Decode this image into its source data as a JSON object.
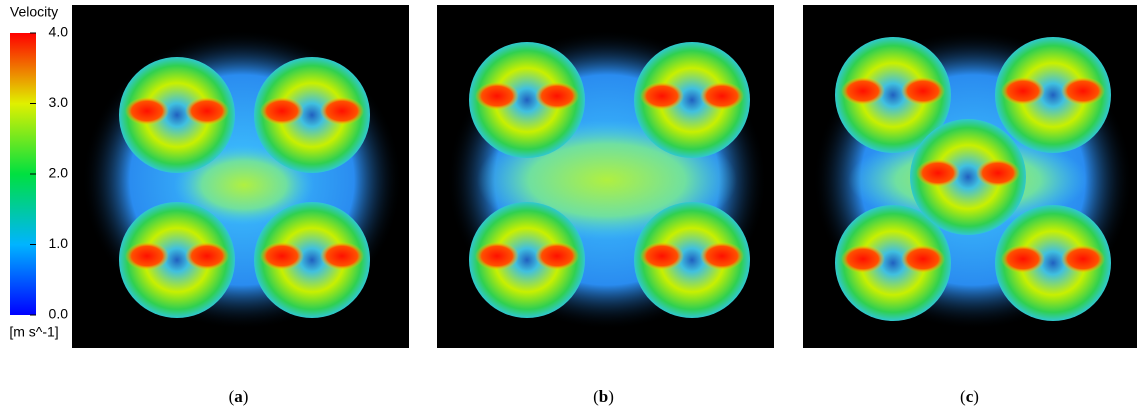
{
  "colorbar": {
    "title": "Velocity",
    "unit": "[m s^-1]",
    "lim": [
      0,
      4
    ],
    "ticks": [
      {
        "value": 4,
        "label": "4.0"
      },
      {
        "value": 3,
        "label": "3.0"
      },
      {
        "value": 2,
        "label": "2.0"
      },
      {
        "value": 1,
        "label": "1.0"
      },
      {
        "value": 0,
        "label": "0.0"
      }
    ]
  },
  "panels": [
    {
      "open": "(",
      "letter": "a",
      "close": ")"
    },
    {
      "open": "(",
      "letter": "b",
      "close": ")"
    },
    {
      "open": "(",
      "letter": "c",
      "close": ")"
    }
  ]
}
